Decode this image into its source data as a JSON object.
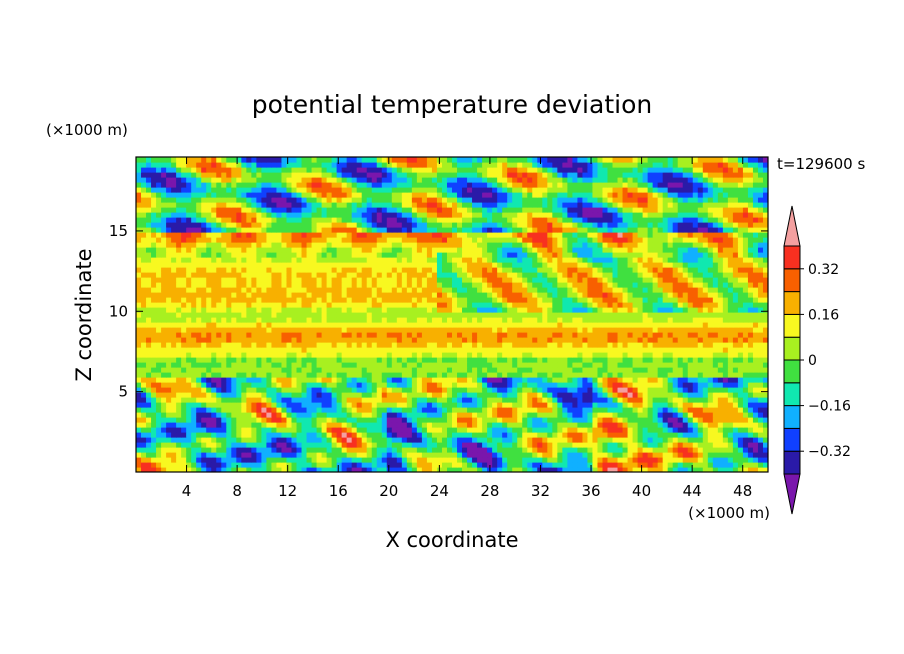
{
  "chart_data": {
    "type": "heatmap",
    "title": "potential temperature deviation",
    "xlabel": "X coordinate",
    "ylabel": "Z coordinate",
    "x_unit": "(×1000 m)",
    "y_unit": "(×1000 m)",
    "time_label": "t=129600 s",
    "xlim": [
      0,
      50
    ],
    "ylim": [
      0,
      19.6
    ],
    "x_ticks": [
      4,
      8,
      12,
      16,
      20,
      24,
      28,
      32,
      36,
      40,
      44,
      48
    ],
    "y_ticks": [
      5,
      10,
      15
    ],
    "colorbar": {
      "levels": [
        -0.4,
        -0.32,
        -0.24,
        -0.16,
        -0.08,
        0,
        0.08,
        0.16,
        0.24,
        0.32,
        0.4
      ],
      "tick_labels": [
        {
          "value": 0.32,
          "label": "0.32"
        },
        {
          "value": 0.16,
          "label": "0.16"
        },
        {
          "value": 0,
          "label": "0"
        },
        {
          "value": -0.16,
          "label": "−0.16"
        },
        {
          "value": -0.32,
          "label": "−0.32"
        }
      ],
      "colors": [
        "#7a16ac",
        "#2a1aa8",
        "#1040ff",
        "#10b0ff",
        "#10e8b0",
        "#40e040",
        "#a8f020",
        "#f8f820",
        "#f8b000",
        "#f86000",
        "#f83020",
        "#f4a0a0"
      ]
    },
    "layers": [
      {
        "z_range": [
          0,
          6
        ],
        "description_colors": [
          "#f4a0a0",
          "#f83020",
          "#f86000",
          "#f8b000",
          "#f8f820",
          "#10e8b0",
          "#10b0ff",
          "#1040ff",
          "#2a1aa8",
          "#7a16ac"
        ]
      },
      {
        "z_range": [
          6,
          15
        ],
        "dominant": "#f8f820"
      },
      {
        "z_range": [
          15,
          19.6
        ],
        "dominant": "#7a16ac"
      }
    ]
  }
}
